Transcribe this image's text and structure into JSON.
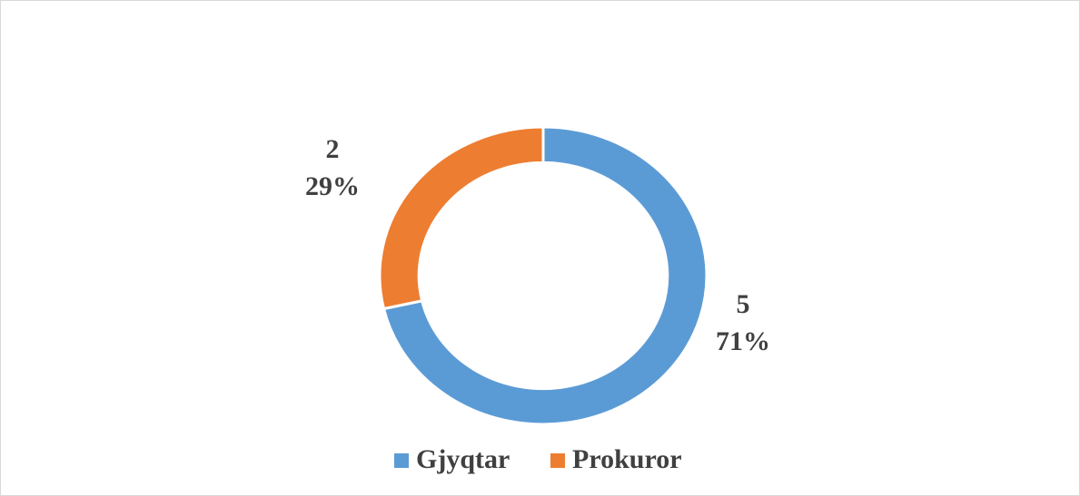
{
  "chart_data": {
    "type": "donut",
    "categories": [
      "Gjyqtar",
      "Prokuror"
    ],
    "values": [
      5,
      2
    ],
    "percent_labels": [
      "71%",
      "29%"
    ],
    "colors": [
      "#5b9bd5",
      "#ed7d31"
    ],
    "legend": "bottom"
  }
}
